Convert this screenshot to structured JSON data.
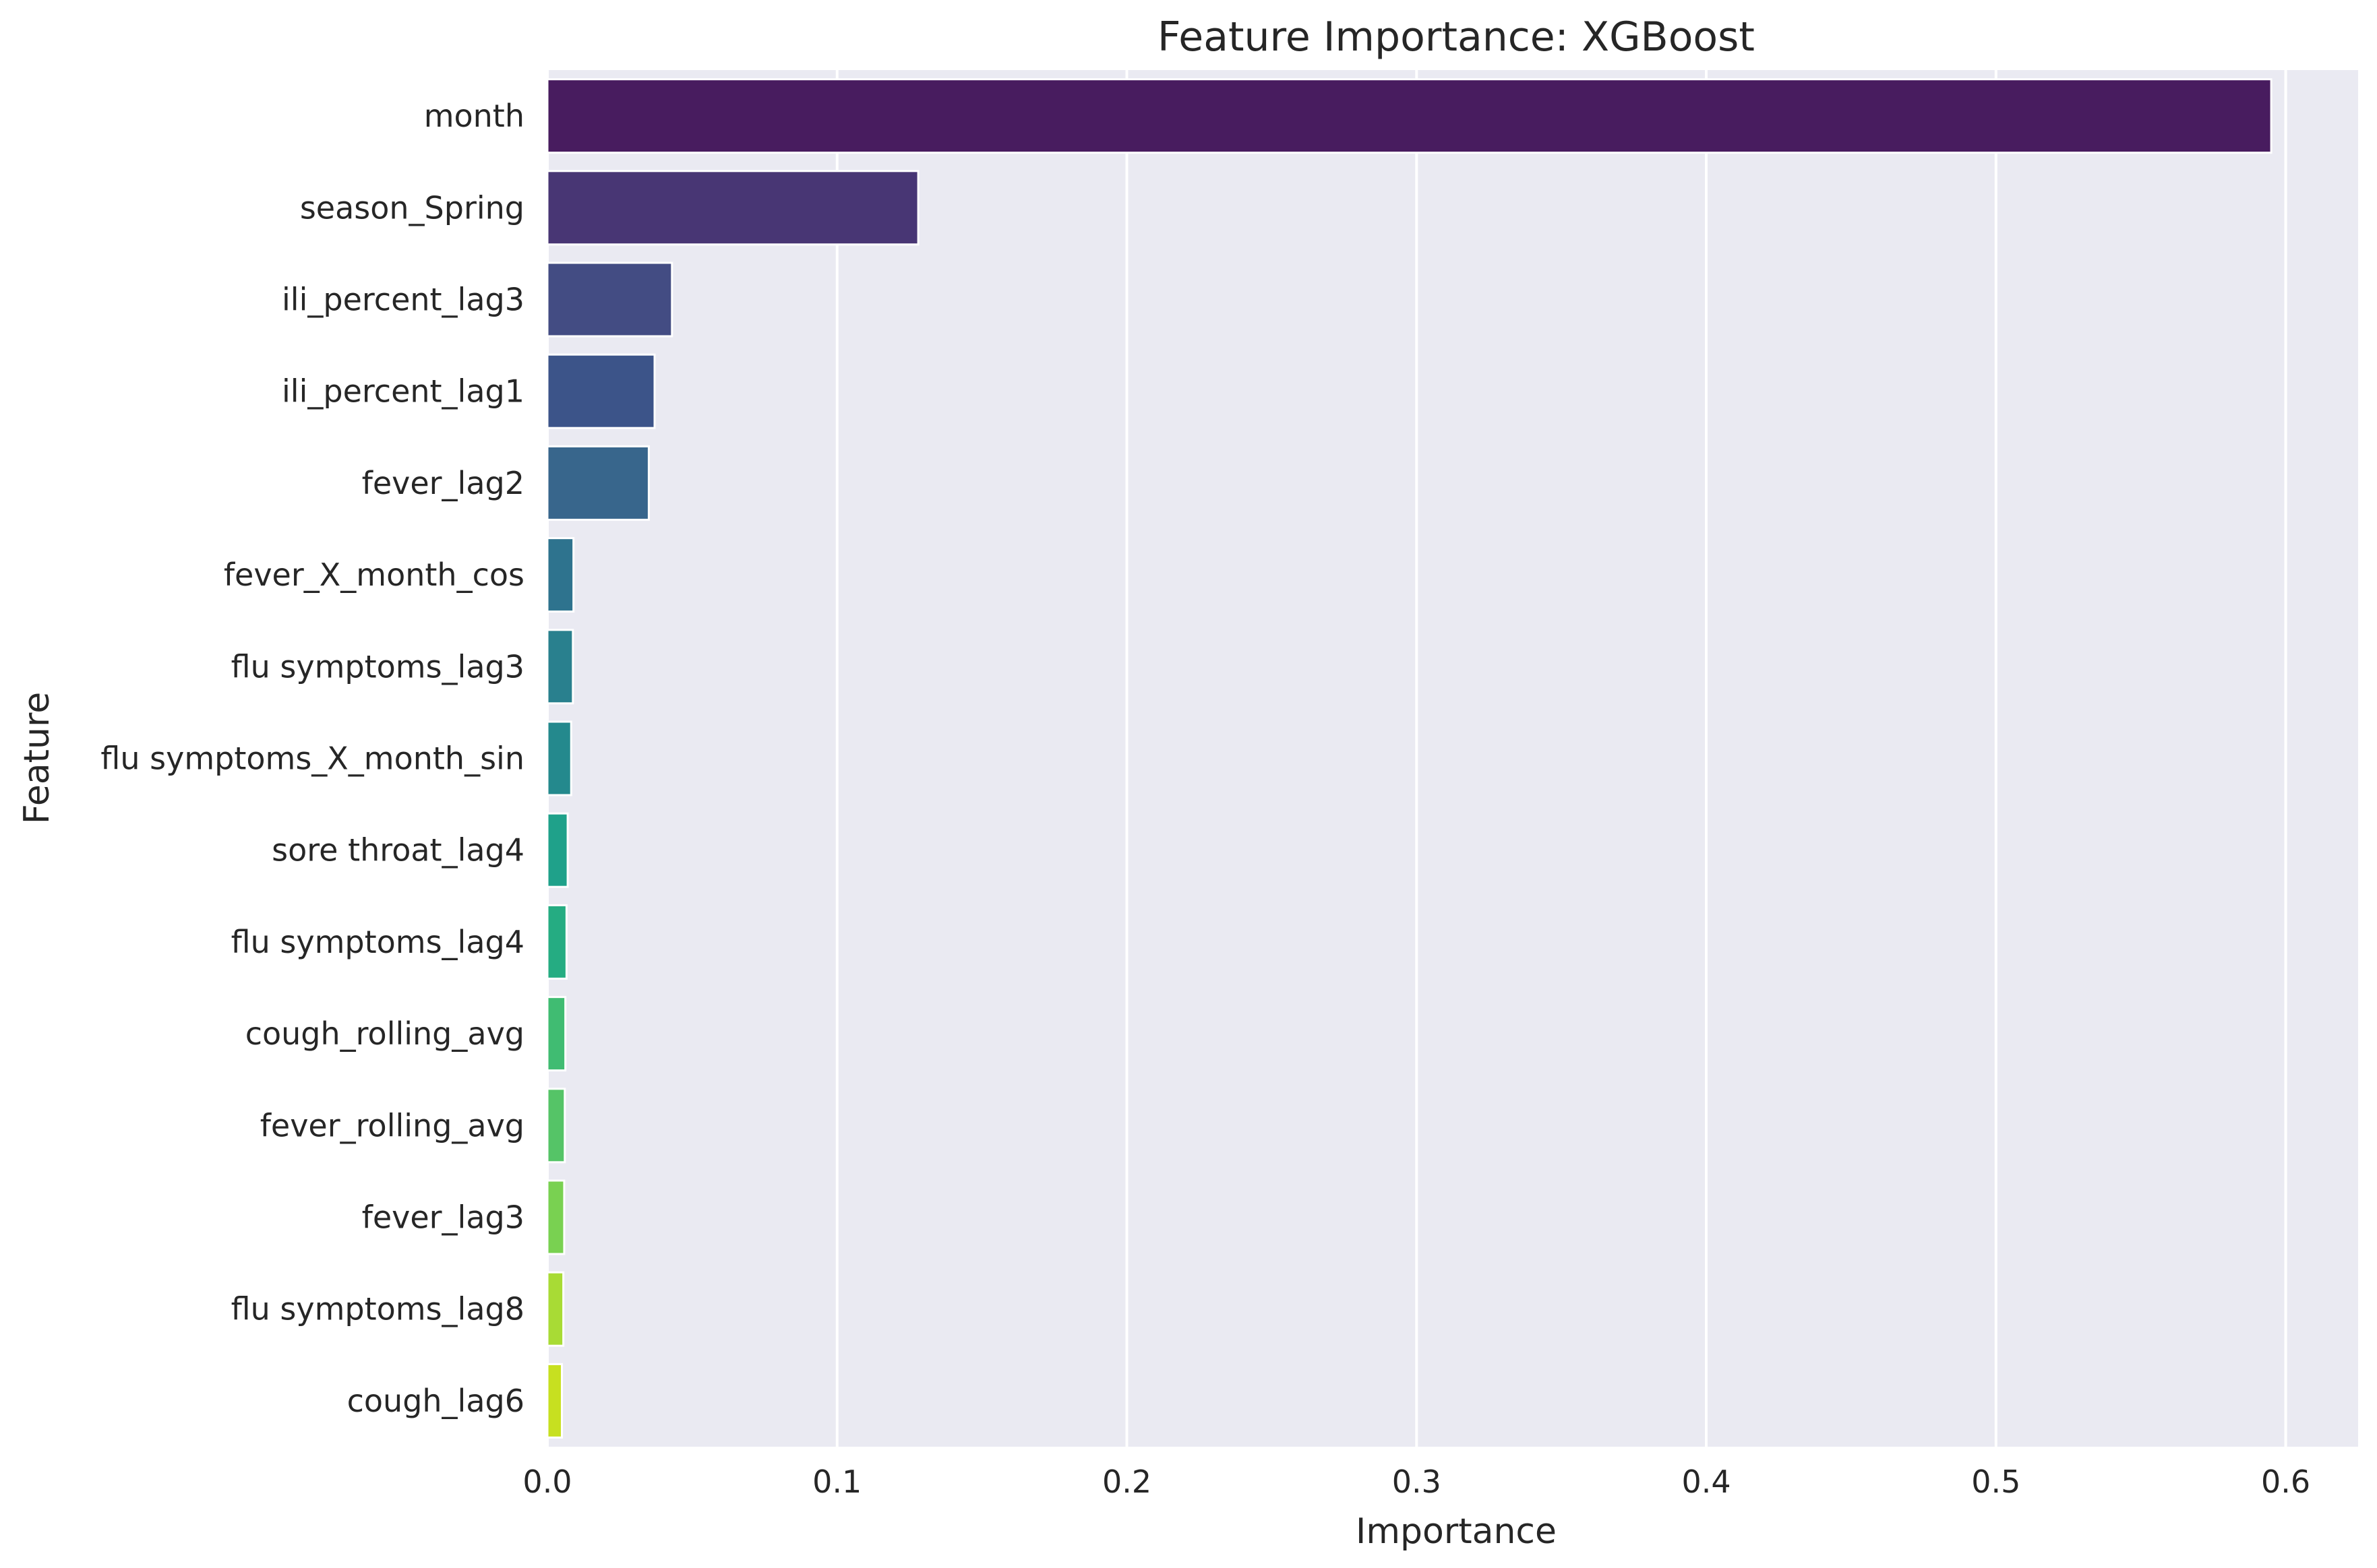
{
  "chart_data": {
    "type": "bar",
    "orientation": "horizontal",
    "title": "Feature Importance: XGBoost",
    "xlabel": "Importance",
    "ylabel": "Feature",
    "xlim": [
      0,
      0.625
    ],
    "xticks": [
      0.0,
      0.1,
      0.2,
      0.3,
      0.4,
      0.5,
      0.6
    ],
    "xtick_labels": [
      "0.0",
      "0.1",
      "0.2",
      "0.3",
      "0.4",
      "0.5",
      "0.6"
    ],
    "grid": true,
    "background": "#eaeaf2",
    "grid_color": "#ffffff",
    "colormap": "viridis",
    "categories": [
      "month",
      "season_Spring",
      "ili_percent_lag3",
      "ili_percent_lag1",
      "fever_lag2",
      "fever_X_month_cos",
      "flu symptoms_lag3",
      "flu symptoms_X_month_sin",
      "sore throat_lag4",
      "flu symptoms_lag4",
      "cough_rolling_avg",
      "fever_rolling_avg",
      "fever_lag3",
      "flu symptoms_lag8",
      "cough_lag6"
    ],
    "values": [
      0.595,
      0.128,
      0.043,
      0.037,
      0.035,
      0.009,
      0.0088,
      0.0082,
      0.007,
      0.0066,
      0.0062,
      0.006,
      0.0058,
      0.0055,
      0.005
    ],
    "colors": [
      "#481c5f",
      "#483674",
      "#434c83",
      "#3c5489",
      "#38668c",
      "#2e738e",
      "#29808e",
      "#24898d",
      "#1fa18a",
      "#25ac82",
      "#40bc72",
      "#55c467",
      "#79d151",
      "#a8db35",
      "#c7e020"
    ]
  }
}
